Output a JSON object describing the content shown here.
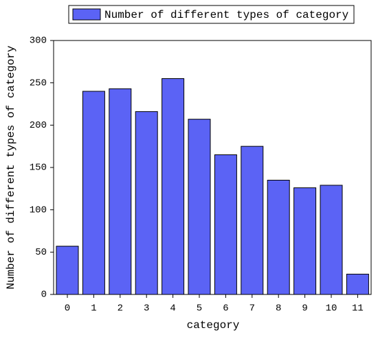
{
  "chart_data": {
    "type": "bar",
    "xlabel": "category",
    "ylabel": "Number of different types of category",
    "categories": [
      "0",
      "1",
      "2",
      "3",
      "4",
      "5",
      "6",
      "7",
      "8",
      "9",
      "10",
      "11"
    ],
    "series": [
      {
        "name": "Number of different types of category",
        "color": "#5b63f5",
        "values": [
          57,
          240,
          243,
          216,
          255,
          207,
          165,
          175,
          135,
          126,
          129,
          24
        ]
      }
    ],
    "ylim": [
      0,
      300
    ],
    "yticks": [
      0,
      50,
      100,
      150,
      200,
      250,
      300
    ],
    "grid": false,
    "legend": "top"
  }
}
